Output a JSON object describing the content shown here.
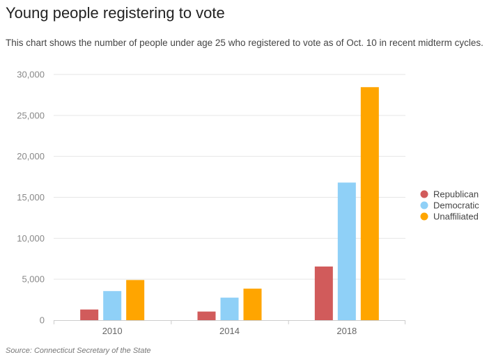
{
  "title": "Young people registering to vote",
  "subtitle": "This chart shows the number of people under age 25 who registered to vote as of Oct. 10 in recent midterm cycles.",
  "source": "Source: Connecticut Secretary of the State",
  "chart_data": {
    "type": "bar",
    "categories": [
      "2010",
      "2014",
      "2018"
    ],
    "series": [
      {
        "name": "Republican",
        "color": "#d15b5b",
        "values": [
          1300,
          1050,
          6550
        ]
      },
      {
        "name": "Democratic",
        "color": "#8fd0f7",
        "values": [
          3550,
          2750,
          16800
        ]
      },
      {
        "name": "Unaffiliated",
        "color": "#ffa500",
        "values": [
          4900,
          3850,
          28450
        ]
      }
    ],
    "ylim": [
      0,
      30000
    ],
    "yticks": [
      "0",
      "5,000",
      "10,000",
      "15,000",
      "20,000",
      "25,000",
      "30,000"
    ],
    "grid": true,
    "legend": "right"
  }
}
